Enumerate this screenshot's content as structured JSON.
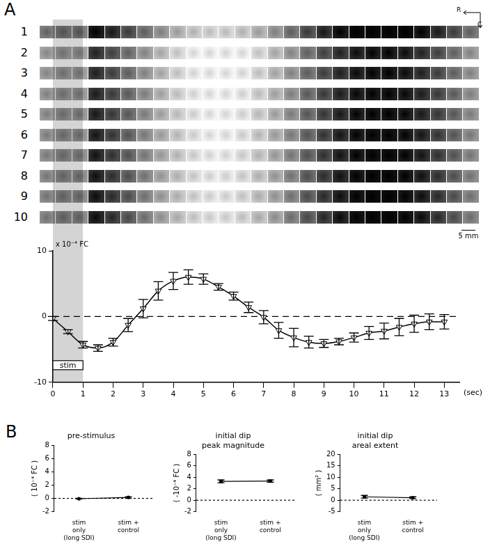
{
  "panel_labels": [
    "A",
    "B"
  ],
  "image_strips": {
    "row_labels": [
      "1",
      "2",
      "3",
      "4",
      "5",
      "6",
      "7",
      "8",
      "9",
      "10"
    ],
    "orientation": {
      "horizontal": "R",
      "vertical": "C"
    },
    "scale_bar": "5 mm"
  },
  "chart_data": [
    {
      "type": "line",
      "y_label": "x 10⁻⁴ FC",
      "x_label": "(sec)",
      "x": [
        0,
        0.5,
        1,
        1.5,
        2,
        2.5,
        3,
        3.5,
        4,
        4.5,
        5,
        5.5,
        6,
        6.5,
        7,
        7.5,
        8,
        8.5,
        9,
        9.5,
        10,
        10.5,
        11,
        11.5,
        12,
        12.5,
        13
      ],
      "values": [
        -0.3,
        -2.3,
        -4.3,
        -4.8,
        -3.9,
        -1.3,
        1.2,
        3.9,
        5.4,
        6.0,
        5.7,
        4.5,
        3.1,
        1.4,
        -0.1,
        -2.1,
        -3.2,
        -3.9,
        -4.1,
        -3.8,
        -3.2,
        -2.5,
        -2.2,
        -1.6,
        -1.1,
        -0.8,
        -0.8
      ],
      "errors": [
        0.3,
        0.3,
        0.5,
        0.5,
        0.6,
        1.0,
        1.4,
        1.4,
        1.3,
        1.1,
        0.8,
        0.5,
        0.6,
        0.8,
        1.0,
        1.2,
        1.4,
        0.9,
        0.6,
        0.5,
        0.7,
        1.0,
        1.2,
        1.3,
        1.3,
        1.2,
        1.1
      ],
      "color": "#000000",
      "marker": "triangle_down",
      "line_style": "solid",
      "xlim": [
        0,
        13.5
      ],
      "xticks": [
        0,
        1,
        2,
        3,
        4,
        5,
        6,
        7,
        8,
        9,
        10,
        11,
        12,
        13
      ],
      "ylim": [
        -10,
        10
      ],
      "yticks": [
        -10,
        0,
        10
      ],
      "grid": false,
      "reference_line": 0,
      "stimulus": {
        "label": "stim",
        "start": 0,
        "end": 1
      }
    },
    {
      "type": "line",
      "title": [
        "pre-stimulus"
      ],
      "y_label": "( 10⁻⁴ FC )",
      "categories": [
        [
          "stim",
          "only",
          "(long SDI)"
        ],
        [
          "stim +",
          "control"
        ]
      ],
      "values": [
        -0.05,
        0.15
      ],
      "errors": [
        0.05,
        0.1
      ],
      "color": "#000000",
      "marker": "circle",
      "line_style": "solid",
      "ylim": [
        -2,
        8
      ],
      "yticks": [
        -2,
        0,
        2,
        4,
        6,
        8
      ],
      "grid": false,
      "reference_line": 0
    },
    {
      "type": "line",
      "title": [
        "initial dip",
        "peak magnitude"
      ],
      "y_label": "( -10⁻⁴ FC )",
      "categories": [
        [
          "stim",
          "only",
          "(long SDI)"
        ],
        [
          "stim +",
          "control"
        ]
      ],
      "values": [
        3.3,
        3.35
      ],
      "errors": [
        0.25,
        0.2
      ],
      "color": "#000000",
      "marker": "circle",
      "line_style": "solid",
      "ylim": [
        -2,
        8
      ],
      "yticks": [
        -2,
        0,
        2,
        4,
        6,
        8
      ],
      "grid": false,
      "reference_line": 0
    },
    {
      "type": "line",
      "title": [
        "initial dip",
        "areal extent"
      ],
      "y_label": "( mm² )",
      "categories": [
        [
          "stim",
          "only",
          "(long SDI)"
        ],
        [
          "stim +",
          "control"
        ]
      ],
      "values": [
        1.5,
        1.1
      ],
      "errors": [
        0.6,
        0.4
      ],
      "color": "#000000",
      "marker": "circle",
      "line_style": "solid",
      "ylim": [
        -5,
        20
      ],
      "yticks": [
        -5,
        0,
        5,
        10,
        15,
        20
      ],
      "grid": false,
      "reference_line": 0
    }
  ]
}
